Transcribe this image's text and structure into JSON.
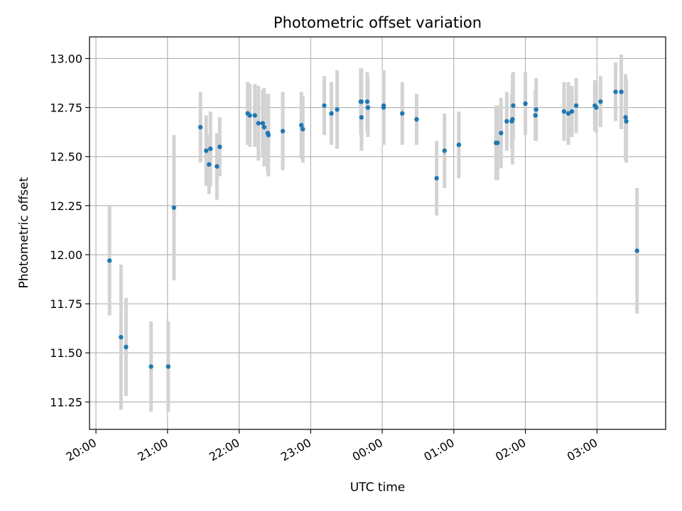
{
  "chart_data": {
    "type": "scatter",
    "title": "Photometric offset variation",
    "xlabel": "UTC time",
    "ylabel": "Photometric offset",
    "x_tick_labels": [
      "20:00",
      "21:00",
      "22:00",
      "23:00",
      "00:00",
      "01:00",
      "02:00",
      "03:00"
    ],
    "x_ticks_hours": [
      0,
      1,
      2,
      3,
      4,
      5,
      6,
      7
    ],
    "x_tick_rotation": "30 degrees",
    "xlim_hours": [
      -0.09,
      7.96
    ],
    "y_tick_labels": [
      "11.25",
      "11.50",
      "11.75",
      "12.00",
      "12.25",
      "12.50",
      "12.75",
      "13.00"
    ],
    "y_ticks": [
      11.25,
      11.5,
      11.75,
      12.0,
      12.25,
      12.5,
      12.75,
      13.0
    ],
    "ylim": [
      11.11,
      13.11
    ],
    "grid": true,
    "point_color": "#1f77b4",
    "errorbar_color": "#d3d3d3",
    "series": [
      {
        "x_time_hours_after_20_00": [
          0.19,
          0.35,
          0.42,
          0.77,
          1.01,
          1.09,
          1.46,
          1.54,
          1.58,
          1.6,
          1.69,
          1.73,
          2.12,
          2.15,
          2.22,
          2.27,
          2.33,
          2.35,
          2.4,
          2.41,
          2.61,
          2.87,
          2.89,
          3.19,
          3.29,
          3.37,
          3.7,
          3.71,
          3.71,
          3.79,
          3.8,
          4.02,
          4.02,
          4.28,
          4.48,
          4.76,
          4.87,
          5.07,
          5.59,
          5.61,
          5.66,
          5.74,
          5.81,
          5.82,
          5.83,
          6.0,
          6.14,
          6.15,
          6.54,
          6.6,
          6.65,
          6.71,
          6.97,
          6.99,
          7.05,
          7.26,
          7.34,
          7.4,
          7.41,
          7.56
        ],
        "y": [
          11.97,
          11.58,
          11.53,
          11.43,
          11.43,
          12.24,
          12.65,
          12.53,
          12.46,
          12.54,
          12.45,
          12.55,
          12.72,
          12.71,
          12.71,
          12.67,
          12.67,
          12.65,
          12.62,
          12.61,
          12.63,
          12.66,
          12.64,
          12.76,
          12.72,
          12.74,
          12.78,
          12.78,
          12.7,
          12.78,
          12.75,
          12.75,
          12.76,
          12.72,
          12.69,
          12.39,
          12.53,
          12.56,
          12.57,
          12.57,
          12.62,
          12.68,
          12.68,
          12.69,
          12.76,
          12.77,
          12.71,
          12.74,
          12.73,
          12.72,
          12.73,
          12.76,
          12.76,
          12.75,
          12.78,
          12.83,
          12.83,
          12.7,
          12.68,
          12.02
        ],
        "y_err": [
          0.28,
          0.37,
          0.25,
          0.23,
          0.23,
          0.37,
          0.18,
          0.18,
          0.15,
          0.19,
          0.17,
          0.15,
          0.16,
          0.16,
          0.16,
          0.19,
          0.17,
          0.2,
          0.2,
          0.21,
          0.2,
          0.17,
          0.17,
          0.15,
          0.16,
          0.2,
          0.17,
          0.17,
          0.17,
          0.15,
          0.15,
          0.19,
          0.18,
          0.16,
          0.13,
          0.19,
          0.19,
          0.17,
          0.19,
          0.19,
          0.18,
          0.15,
          0.14,
          0.23,
          0.17,
          0.16,
          0.13,
          0.16,
          0.15,
          0.16,
          0.13,
          0.14,
          0.13,
          0.13,
          0.13,
          0.15,
          0.19,
          0.22,
          0.21,
          0.32
        ]
      }
    ]
  }
}
